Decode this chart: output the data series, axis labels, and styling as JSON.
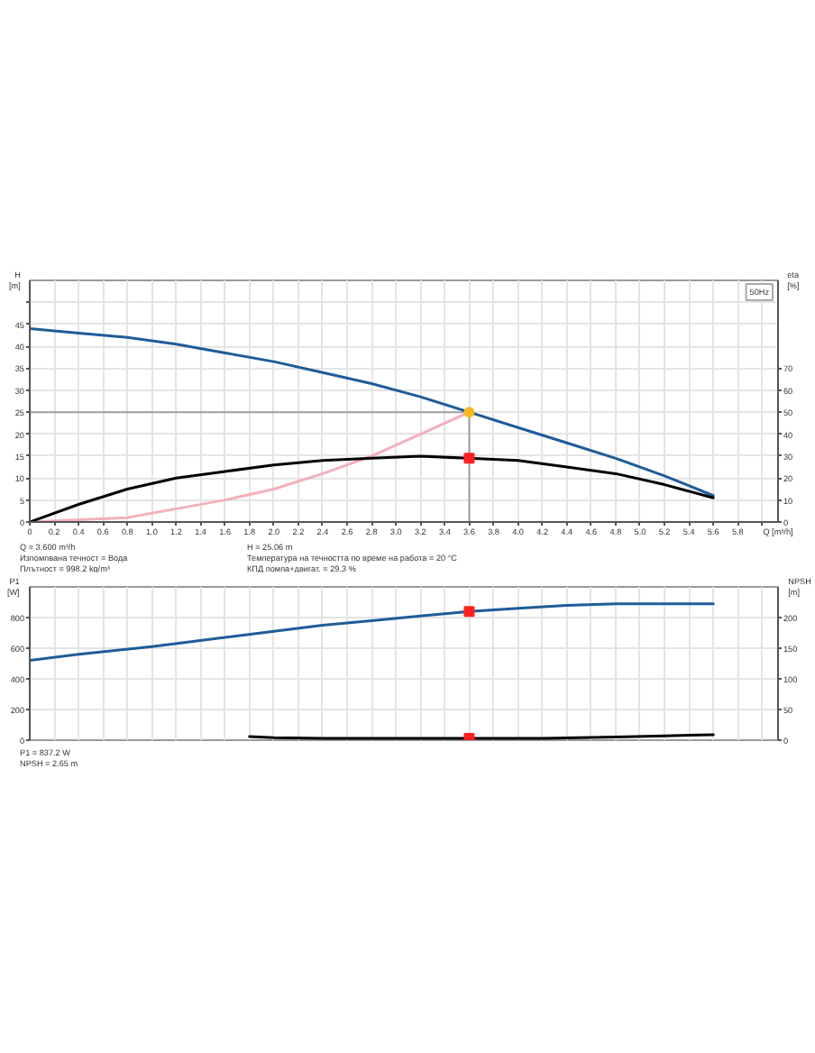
{
  "chart_data": [
    {
      "type": "line",
      "title": "50Hz",
      "xlabel": "Q [m³/h]",
      "ylabel": "H [m]",
      "y2label": "eta [%]",
      "xlim": [
        0,
        6.13
      ],
      "xticks": [
        0,
        0.2,
        0.4,
        0.6,
        0.8,
        {
          "value": 1,
          "label": "1.0"
        },
        1.2,
        1.4,
        1.6,
        1.8,
        {
          "value": 2,
          "label": "2.0"
        },
        2.2,
        2.4,
        2.6,
        2.8,
        {
          "value": 3,
          "label": "3.0"
        },
        3.2,
        3.4,
        3.6,
        3.8,
        {
          "value": 4,
          "label": "4.0"
        },
        4.2,
        4.4,
        4.6,
        4.8,
        {
          "value": 5,
          "label": "5.0"
        },
        5.2,
        5.4,
        5.6,
        5.8,
        {
          "value": 6,
          "label": null
        }
      ],
      "ylim": [
        0,
        55
      ],
      "yticks": [
        0,
        5,
        10,
        15,
        20,
        25,
        30,
        35,
        40,
        45,
        {
          "value": 50,
          "label": null
        }
      ],
      "y2lim": [
        0,
        110
      ],
      "y2ticks": [
        0,
        10,
        20,
        30,
        40,
        50,
        60,
        70
      ],
      "grid": true,
      "ref_lines": [
        {
          "axis": "y",
          "value": 25,
          "color": "#a0a0a0"
        },
        {
          "axis": "x",
          "value": 3.6,
          "color": "#a0a0a0"
        }
      ],
      "series": [
        {
          "color": "#1f5c99",
          "x": [
            0,
            0.4,
            0.8,
            1.2,
            1.6,
            2.0,
            2.4,
            2.8,
            3.2,
            3.6,
            4.0,
            4.4,
            4.8,
            5.2,
            5.6
          ],
          "values": [
            44,
            43,
            42,
            40.5,
            38.5,
            36.5,
            34,
            31.5,
            28.5,
            25,
            21.5,
            18,
            14.5,
            10.5,
            6
          ]
        },
        {
          "color": "#f2b0ba",
          "x": [
            0,
            0.4,
            0.8,
            1.2,
            1.6,
            2.0,
            2.4,
            2.8,
            3.2,
            3.6
          ],
          "values": [
            0,
            0.5,
            1,
            3,
            5,
            7.5,
            11,
            15,
            20,
            25
          ]
        },
        {
          "color": "#000000",
          "axis": "y2",
          "x": [
            0,
            0.4,
            0.8,
            1.2,
            1.6,
            2.0,
            2.4,
            2.8,
            3.2,
            3.6,
            4.0,
            4.4,
            4.8,
            5.2,
            5.6
          ],
          "values": [
            0,
            8,
            15,
            20,
            23,
            26,
            28,
            29,
            30,
            29,
            28,
            25,
            22,
            17,
            11
          ]
        },
        {
          "type": "scatter",
          "marker": "circle",
          "color": "#f6b91e",
          "x": [
            3.6
          ],
          "values": [
            25
          ]
        },
        {
          "type": "scatter",
          "marker": "square",
          "color": "#ff2020",
          "axis": "y2",
          "x": [
            3.6
          ],
          "values": [
            29
          ]
        }
      ],
      "annotations": [
        "Q = 3.600 m³/h",
        "H = 25.06 m",
        "Изпомпвана течност = Вода",
        "Температура на течността по време на работа = 20 °C",
        "Плътност = 998.2 kg/m³",
        "КПД помпа+двигат. = 29.3 %"
      ]
    },
    {
      "type": "line",
      "ylabel": "P1 [W]",
      "y2label": "NPSH [m]",
      "tick_labels": "y",
      "xlim": [
        0,
        6.13
      ],
      "xticks": [
        0,
        0.2,
        0.4,
        0.6,
        0.8,
        1,
        1.2,
        1.4,
        1.6,
        1.8,
        2,
        2.2,
        2.4,
        2.6,
        2.8,
        3,
        3.2,
        3.4,
        3.6,
        3.8,
        4,
        4.2,
        4.4,
        4.6,
        4.8,
        5,
        5.2,
        5.4,
        5.6,
        5.8,
        6
      ],
      "ylim": [
        0,
        1000
      ],
      "yticks": [
        0,
        200,
        400,
        600,
        800
      ],
      "y2lim": [
        0,
        250
      ],
      "y2ticks": [
        0,
        50,
        100,
        150,
        200
      ],
      "grid": true,
      "series": [
        {
          "color": "#1f5c99",
          "x": [
            0,
            0.4,
            1.0,
            1.6,
            2.0,
            2.4,
            2.8,
            3.2,
            3.6,
            4.0,
            4.4,
            4.8,
            5.2,
            5.6
          ],
          "values": [
            520,
            560,
            610,
            670,
            710,
            750,
            780,
            810,
            840,
            860,
            880,
            890,
            890,
            890
          ]
        },
        {
          "color": "#000000",
          "axis": "y2",
          "x": [
            1.8,
            2.0,
            2.4,
            3.0,
            3.6,
            4.2,
            4.8,
            5.2,
            5.6
          ],
          "values": [
            6,
            4,
            3,
            3,
            3,
            3,
            5,
            7,
            9
          ]
        },
        {
          "type": "scatter",
          "marker": "square",
          "color": "#ff2020",
          "x": [
            3.6
          ],
          "values": [
            840
          ]
        },
        {
          "type": "scatter",
          "marker": "square",
          "color": "#ff2020",
          "axis": "y2",
          "x": [
            3.6
          ],
          "values": [
            3
          ]
        }
      ],
      "annotations": [
        "P1 = 837.2 W",
        "NPSH = 2.65 m"
      ]
    }
  ]
}
